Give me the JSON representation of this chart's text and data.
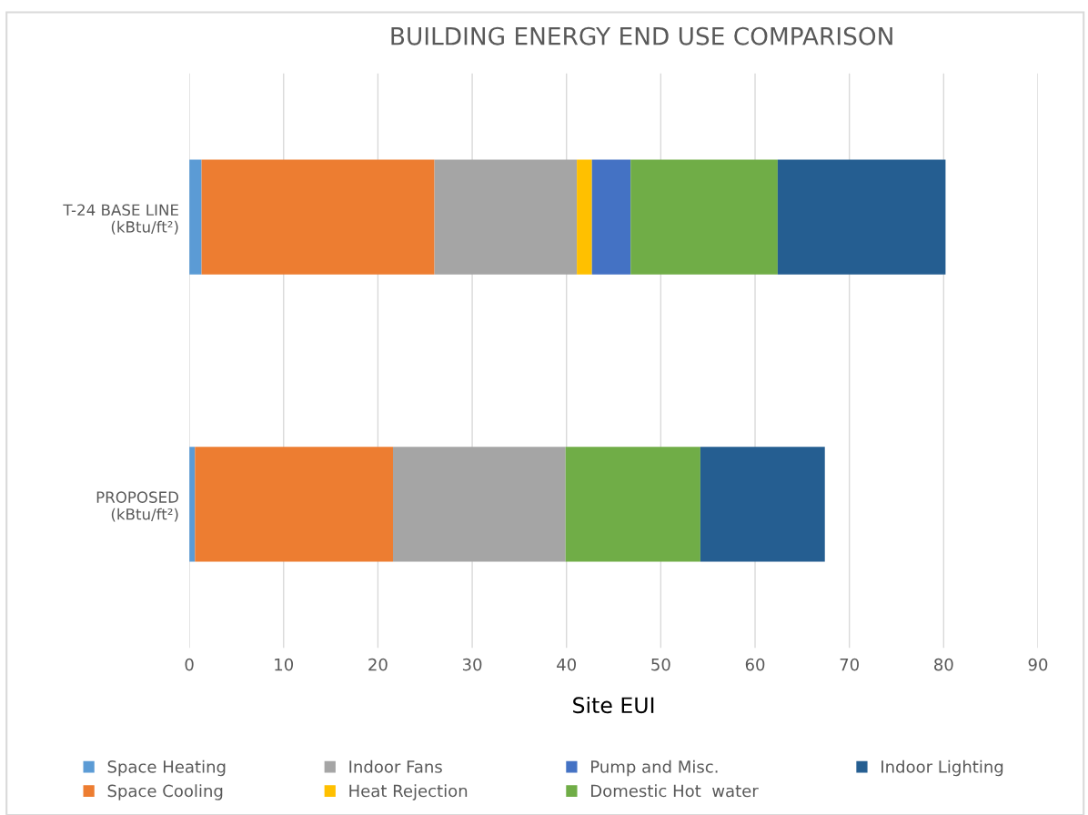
{
  "chart_data": {
    "type": "bar",
    "orientation": "horizontal",
    "stacked": true,
    "title": "BUILDING ENERGY END USE COMPARISON",
    "xlabel": "Site EUI",
    "categories": [
      "T-24 BASE LINE\n(kBtu/ft²)",
      "PROPOSED\n(kBtu/ft²)"
    ],
    "series": [
      {
        "name": "Space Heating",
        "color": "#5b9bd5",
        "values": [
          1.3,
          0.6
        ]
      },
      {
        "name": "Space Cooling",
        "color": "#ed7d31",
        "values": [
          24.7,
          21.0
        ]
      },
      {
        "name": "Indoor Fans",
        "color": "#a5a5a5",
        "values": [
          15.1,
          18.3
        ]
      },
      {
        "name": "Heat Rejection",
        "color": "#ffc000",
        "values": [
          1.6,
          0
        ]
      },
      {
        "name": "Pump and Misc.",
        "color": "#4472c4",
        "values": [
          4.1,
          0
        ]
      },
      {
        "name": "Domestic Hot  water",
        "color": "#70ad47",
        "values": [
          15.6,
          14.3
        ]
      },
      {
        "name": "Indoor Lighting",
        "color": "#255e91",
        "values": [
          17.8,
          13.2
        ]
      }
    ],
    "xlim": [
      0,
      90
    ],
    "xticks": [
      0,
      10,
      20,
      30,
      40,
      50,
      60,
      70,
      80,
      90
    ],
    "grid": "x",
    "legend": "bottom"
  }
}
